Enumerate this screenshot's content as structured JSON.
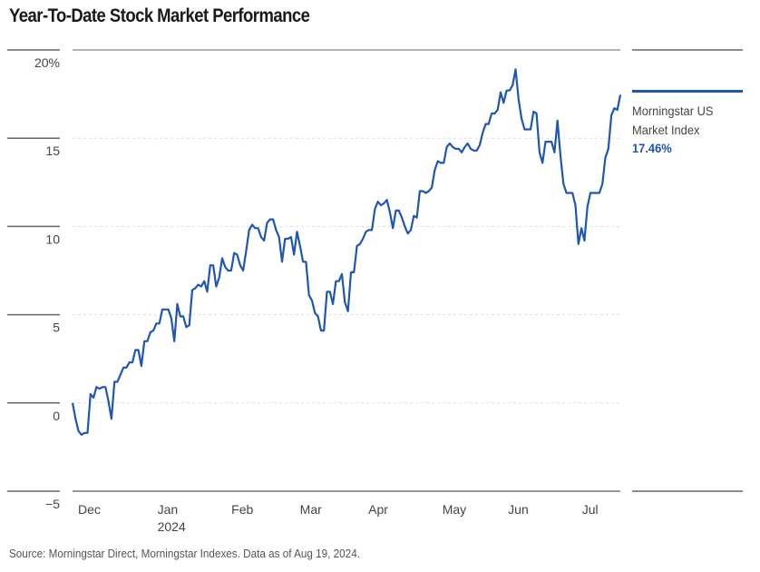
{
  "title": "Year-To-Date Stock Market Performance",
  "source": "Source: Morningstar Direct, Morningstar Indexes. Data as of Aug 19, 2024.",
  "legend": {
    "series_name_line1": "Morningstar US",
    "series_name_line2": "Market Index",
    "series_value": "17.46%",
    "color": "#1f56b0"
  },
  "chart_data": {
    "type": "line",
    "title": "Year-To-Date Stock Market Performance",
    "xlabel": "",
    "ylabel": "",
    "ylim": [
      -5,
      20
    ],
    "yticks": [
      {
        "value": 20,
        "label": "20%"
      },
      {
        "value": 15,
        "label": "15"
      },
      {
        "value": 10,
        "label": "10"
      },
      {
        "value": 5,
        "label": "5"
      },
      {
        "value": 0,
        "label": "0"
      },
      {
        "value": -5,
        "label": "−5"
      }
    ],
    "xticks": [
      {
        "pos": 0.01,
        "label": "Dec",
        "sublabel": ""
      },
      {
        "pos": 0.155,
        "label": "Jan",
        "sublabel": "2024"
      },
      {
        "pos": 0.29,
        "label": "Feb",
        "sublabel": ""
      },
      {
        "pos": 0.415,
        "label": "Mar",
        "sublabel": ""
      },
      {
        "pos": 0.54,
        "label": "Apr",
        "sublabel": ""
      },
      {
        "pos": 0.675,
        "label": "May",
        "sublabel": ""
      },
      {
        "pos": 0.795,
        "label": "Jun",
        "sublabel": ""
      },
      {
        "pos": 0.93,
        "label": "Jul",
        "sublabel": ""
      }
    ],
    "grid": true,
    "legend_position": "right",
    "series": [
      {
        "name": "Morningstar US Market Index",
        "color": "#1f56b0",
        "final_value": 17.46,
        "values": [
          0,
          -0.9,
          -1.6,
          -1.8,
          -1.7,
          -1.7,
          0.5,
          0.3,
          0.9,
          0.8,
          0.9,
          0.9,
          0.1,
          -0.9,
          1.2,
          1.2,
          1.6,
          2.0,
          2.0,
          2.3,
          2.3,
          3.0,
          3.0,
          2.1,
          3.5,
          3.5,
          4.0,
          4.1,
          4.5,
          4.5,
          5.3,
          5.3,
          5.3,
          4.8,
          3.5,
          5.6,
          4.9,
          4.9,
          4.3,
          4.4,
          6.4,
          6.5,
          6.7,
          6.6,
          6.9,
          6.3,
          7.8,
          7.8,
          6.6,
          7.1,
          8.2,
          7.7,
          7.5,
          7.5,
          8.5,
          8.4,
          7.8,
          7.5,
          8.6,
          9.8,
          10.1,
          9.9,
          9.9,
          9.4,
          9.2,
          10.2,
          10.4,
          10.4,
          9.8,
          9.4,
          8.0,
          9.3,
          9.3,
          9.4,
          8.4,
          9.7,
          8.9,
          8.0,
          8.0,
          6.1,
          5.8,
          5.1,
          4.9,
          4.1,
          4.1,
          6.3,
          6.3,
          5.6,
          6.9,
          6.9,
          7.3,
          5.7,
          5.2,
          7.4,
          7.4,
          8.9,
          9.0,
          9.3,
          9.7,
          9.8,
          9.8,
          11.0,
          11.4,
          11.2,
          11.3,
          11.5,
          10.8,
          9.9,
          10.9,
          10.9,
          10.5,
          10.0,
          9.6,
          9.8,
          10.6,
          10.5,
          12.0,
          12.0,
          11.9,
          12.0,
          12.2,
          13.2,
          13.7,
          13.6,
          13.6,
          14.5,
          14.7,
          14.5,
          14.4,
          14.4,
          14.2,
          14.5,
          14.7,
          14.4,
          14.3,
          14.3,
          14.6,
          15.3,
          15.8,
          15.8,
          16.4,
          16.4,
          16.6,
          17.6,
          17.0,
          17.7,
          17.7,
          18.0,
          18.9,
          17.2,
          16.1,
          15.5,
          15.5,
          15.5,
          16.5,
          16.4,
          14.2,
          13.6,
          14.8,
          14.8,
          14.8,
          14.2,
          16.0,
          14.0,
          12.4,
          11.9,
          11.9,
          11.9,
          11.2,
          9.0,
          9.9,
          9.2,
          11.1,
          11.9,
          11.9,
          11.9,
          11.9,
          12.4,
          13.9,
          14.4,
          16.3,
          16.7,
          16.6,
          17.46
        ]
      }
    ]
  }
}
